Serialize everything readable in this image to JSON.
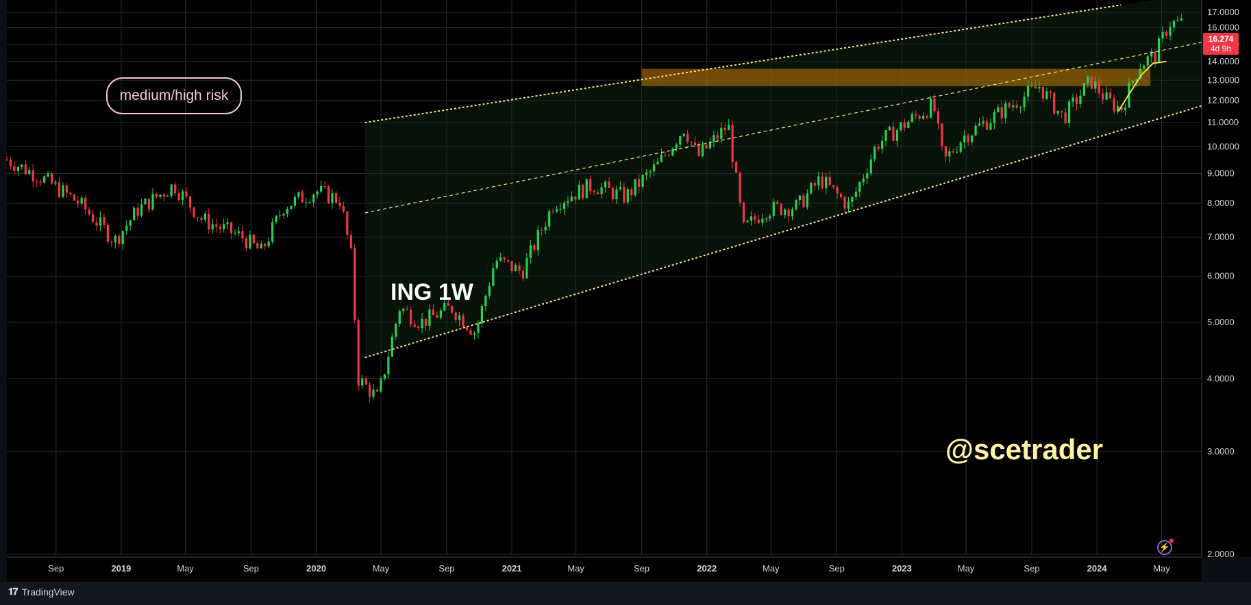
{
  "annotations": {
    "risk_label": "medium/high risk",
    "chart_title": "ING 1W",
    "watermark": "@scetrader"
  },
  "price_tag": {
    "price": "16.274",
    "countdown": "4d 9h",
    "color": "#f23645"
  },
  "footer": {
    "brand": "TradingView"
  },
  "colors": {
    "background": "#000000",
    "grid": "#2a2e39",
    "up_candle": "#26d24f",
    "down_candle": "#f23645",
    "channel_line": "#fde68a",
    "resistance_zone": "#b8730a",
    "projection_curve": "#f5e050"
  },
  "icons": {
    "lightning": "lightning-icon",
    "brand": "tradingview-logo-icon"
  },
  "chart_data": {
    "type": "candlestick",
    "title": "ING 1W",
    "xlabel": "",
    "ylabel": "",
    "y_scale": "log",
    "ylim": [
      2.0,
      17.0
    ],
    "xlim": [
      "2018-06-01",
      "2024-07-15"
    ],
    "grid": true,
    "y_ticks": [
      "2.0000",
      "3.0000",
      "4.0000",
      "5.0000",
      "6.0000",
      "7.0000",
      "8.0000",
      "9.0000",
      "10.0000",
      "11.0000",
      "12.0000",
      "13.0000",
      "14.0000",
      "15.0000",
      "16.0000",
      "17.0000"
    ],
    "y_tick_values": [
      2,
      3,
      4,
      5,
      6,
      7,
      8,
      9,
      10,
      11,
      12,
      13,
      14,
      15,
      16,
      17
    ],
    "x_ticks": [
      {
        "label": "Sep",
        "date": "2018-09-01"
      },
      {
        "label": "2019",
        "date": "2019-01-01"
      },
      {
        "label": "May",
        "date": "2019-05-01"
      },
      {
        "label": "Sep",
        "date": "2019-09-01"
      },
      {
        "label": "2020",
        "date": "2020-01-01"
      },
      {
        "label": "May",
        "date": "2020-05-01"
      },
      {
        "label": "Sep",
        "date": "2020-09-01"
      },
      {
        "label": "2021",
        "date": "2021-01-01"
      },
      {
        "label": "May",
        "date": "2021-05-01"
      },
      {
        "label": "Sep",
        "date": "2021-09-01"
      },
      {
        "label": "2022",
        "date": "2022-01-01"
      },
      {
        "label": "May",
        "date": "2022-05-01"
      },
      {
        "label": "Sep",
        "date": "2022-09-01"
      },
      {
        "label": "2023",
        "date": "2023-01-01"
      },
      {
        "label": "May",
        "date": "2023-05-01"
      },
      {
        "label": "Sep",
        "date": "2023-09-01"
      },
      {
        "label": "2024",
        "date": "2024-01-01"
      },
      {
        "label": "May",
        "date": "2024-05-01"
      }
    ],
    "close_path": [
      [
        "2018-06-01",
        9.5
      ],
      [
        "2018-08-01",
        8.9
      ],
      [
        "2018-10-15",
        8.0
      ],
      [
        "2018-12-20",
        6.9
      ],
      [
        "2019-02-01",
        7.8
      ],
      [
        "2019-04-10",
        8.6
      ],
      [
        "2019-06-01",
        7.5
      ],
      [
        "2019-08-15",
        7.0
      ],
      [
        "2019-09-20",
        6.6
      ],
      [
        "2019-11-01",
        7.9
      ],
      [
        "2019-12-31",
        8.4
      ],
      [
        "2020-02-15",
        8.1
      ],
      [
        "2020-03-06",
        6.5
      ],
      [
        "2020-03-20",
        4.0
      ],
      [
        "2020-04-25",
        3.7
      ],
      [
        "2020-06-05",
        5.3
      ],
      [
        "2020-07-15",
        5.0
      ],
      [
        "2020-09-10",
        5.3
      ],
      [
        "2020-10-25",
        4.8
      ],
      [
        "2020-12-01",
        6.4
      ],
      [
        "2021-01-20",
        6.1
      ],
      [
        "2021-03-20",
        8.0
      ],
      [
        "2021-06-01",
        8.6
      ],
      [
        "2021-08-01",
        8.2
      ],
      [
        "2021-10-01",
        9.3
      ],
      [
        "2021-11-20",
        10.8
      ],
      [
        "2021-12-15",
        9.6
      ],
      [
        "2022-02-10",
        10.9
      ],
      [
        "2022-03-10",
        7.2
      ],
      [
        "2022-04-20",
        7.8
      ],
      [
        "2022-06-20",
        7.9
      ],
      [
        "2022-08-01",
        8.8
      ],
      [
        "2022-09-25",
        7.9
      ],
      [
        "2022-11-15",
        10.1
      ],
      [
        "2023-01-10",
        11.0
      ],
      [
        "2023-03-01",
        11.8
      ],
      [
        "2023-03-20",
        9.4
      ],
      [
        "2023-04-25",
        10.4
      ],
      [
        "2023-07-01",
        11.4
      ],
      [
        "2023-09-15",
        12.7
      ],
      [
        "2023-10-30",
        11.2
      ],
      [
        "2023-12-20",
        13.0
      ],
      [
        "2024-01-20",
        12.0
      ],
      [
        "2024-02-15",
        11.6
      ],
      [
        "2024-03-20",
        13.8
      ],
      [
        "2024-04-20",
        14.4
      ],
      [
        "2024-05-15",
        16.3
      ],
      [
        "2024-06-10",
        16.27
      ]
    ],
    "channel_lines": [
      {
        "name": "upper",
        "style": "dotted",
        "start": [
          "2020-04-01",
          11.0
        ],
        "end": [
          "2024-02-15",
          17.5
        ]
      },
      {
        "name": "mid",
        "style": "dashed",
        "start": [
          "2020-04-01",
          7.7
        ],
        "end": [
          "2024-07-15",
          15.1
        ]
      },
      {
        "name": "lower",
        "style": "dotted",
        "start": [
          "2020-04-01",
          4.35
        ],
        "end": [
          "2024-07-15",
          11.75
        ]
      }
    ],
    "zones": [
      {
        "name": "resistance",
        "x_start": "2021-09-01",
        "x_end": "2024-04-10",
        "y_low": 12.7,
        "y_high": 13.6
      }
    ],
    "projection_curve": [
      [
        "2024-02-10",
        11.5
      ],
      [
        "2024-03-01",
        12.3
      ],
      [
        "2024-03-25",
        13.3
      ],
      [
        "2024-04-15",
        13.9
      ],
      [
        "2024-05-10",
        14.0
      ]
    ],
    "last_price": 16.274
  }
}
